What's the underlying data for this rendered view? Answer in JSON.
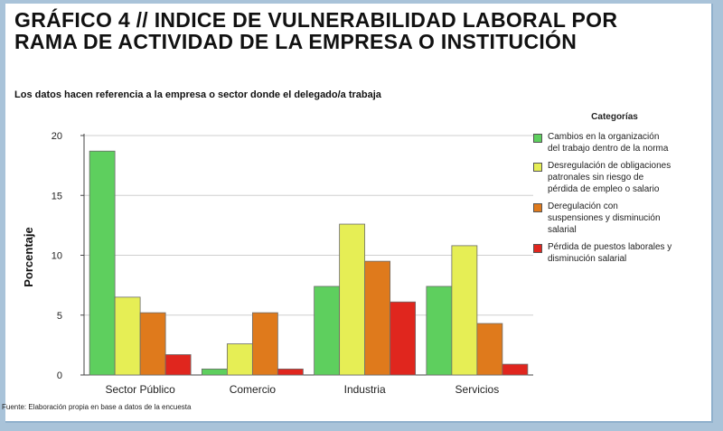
{
  "title": "GRÁFICO 4 // INDICE DE VULNERABILIDAD LABORAL POR RAMA DE ACTIVIDAD DE LA EMPRESA O INSTITUCIÓN",
  "subtitle": "Los datos hacen referencia a la empresa o sector donde el delegado/a trabaja",
  "source": "Fuente: Elaboración propia en base a datos de la encuesta",
  "chart_data": {
    "type": "bar",
    "categories": [
      "Sector Público",
      "Comercio",
      "Industria",
      "Servicios"
    ],
    "ylabel": "Porcentaje",
    "xlabel": "",
    "ylim": [
      0,
      20
    ],
    "yticks": [
      0,
      5,
      10,
      15,
      20
    ],
    "grid": true,
    "legend_title": "Categorías",
    "legend_position": "right",
    "series": [
      {
        "name": "Cambios en la organización\ndel trabajo dentro de la norma",
        "color": "#5ecf5e",
        "values": [
          18.7,
          0.5,
          7.4,
          7.4
        ]
      },
      {
        "name": "Desregulación de obligaciones\npatronales sin riesgo de\npérdida de empleo o salario",
        "color": "#e6ee55",
        "values": [
          6.5,
          2.6,
          12.6,
          10.8
        ]
      },
      {
        "name": "Deregulación con\nsuspensiones y disminución\nsalarial",
        "color": "#df7a1c",
        "values": [
          5.2,
          5.2,
          9.5,
          4.3
        ]
      },
      {
        "name": "Pérdida de puestos laborales y\ndisminución salarial",
        "color": "#e0261e",
        "values": [
          1.7,
          0.5,
          6.1,
          0.9
        ]
      }
    ]
  }
}
